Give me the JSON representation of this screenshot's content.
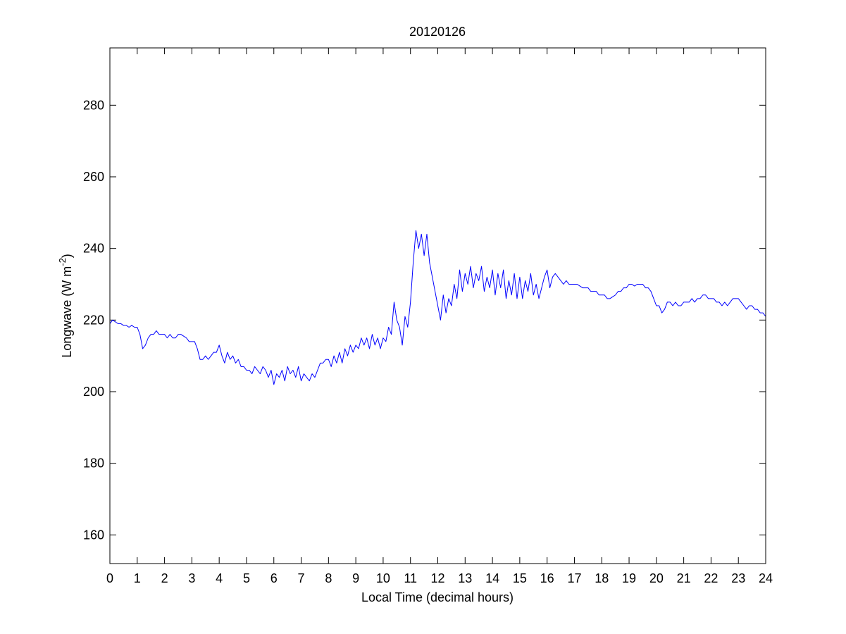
{
  "chart_data": {
    "type": "line",
    "title": "20120126",
    "xlabel": "Local Time (decimal hours)",
    "ylabel": {
      "text": "Longwave (W m",
      "superscript": "-2",
      "suffix": ")"
    },
    "xlim": [
      0,
      24
    ],
    "ylim": [
      152,
      296
    ],
    "xticks": [
      0,
      1,
      2,
      3,
      4,
      5,
      6,
      7,
      8,
      9,
      10,
      11,
      12,
      13,
      14,
      15,
      16,
      17,
      18,
      19,
      20,
      21,
      22,
      23,
      24
    ],
    "yticks": [
      160,
      180,
      200,
      220,
      240,
      260,
      280
    ],
    "grid": false,
    "box": true,
    "x": [
      0,
      0.1,
      0.2,
      0.3,
      0.4,
      0.5,
      0.6,
      0.7,
      0.8,
      0.9,
      1,
      1.1,
      1.2,
      1.3,
      1.4,
      1.5,
      1.6,
      1.7,
      1.8,
      1.9,
      2,
      2.1,
      2.2,
      2.3,
      2.4,
      2.5,
      2.6,
      2.7,
      2.8,
      2.9,
      3,
      3.1,
      3.2,
      3.3,
      3.4,
      3.5,
      3.6,
      3.7,
      3.8,
      3.9,
      4,
      4.1,
      4.2,
      4.3,
      4.4,
      4.5,
      4.6,
      4.7,
      4.8,
      4.9,
      5,
      5.1,
      5.2,
      5.3,
      5.4,
      5.5,
      5.6,
      5.7,
      5.8,
      5.9,
      6,
      6.1,
      6.2,
      6.3,
      6.4,
      6.5,
      6.6,
      6.7,
      6.8,
      6.9,
      7,
      7.1,
      7.2,
      7.3,
      7.4,
      7.5,
      7.6,
      7.7,
      7.8,
      7.9,
      8,
      8.1,
      8.2,
      8.3,
      8.4,
      8.5,
      8.6,
      8.7,
      8.8,
      8.9,
      9,
      9.1,
      9.2,
      9.3,
      9.4,
      9.5,
      9.6,
      9.7,
      9.8,
      9.9,
      10,
      10.1,
      10.2,
      10.3,
      10.4,
      10.5,
      10.6,
      10.7,
      10.8,
      10.9,
      11,
      11.1,
      11.2,
      11.3,
      11.4,
      11.5,
      11.6,
      11.7,
      11.8,
      11.9,
      12,
      12.1,
      12.2,
      12.3,
      12.4,
      12.5,
      12.6,
      12.7,
      12.8,
      12.9,
      13,
      13.1,
      13.2,
      13.3,
      13.4,
      13.5,
      13.6,
      13.7,
      13.8,
      13.9,
      14,
      14.1,
      14.2,
      14.3,
      14.4,
      14.5,
      14.6,
      14.7,
      14.8,
      14.9,
      15,
      15.1,
      15.2,
      15.3,
      15.4,
      15.5,
      15.6,
      15.7,
      15.8,
      15.9,
      16,
      16.1,
      16.2,
      16.3,
      16.4,
      16.5,
      16.6,
      16.7,
      16.8,
      16.9,
      17,
      17.1,
      17.2,
      17.3,
      17.4,
      17.5,
      17.6,
      17.7,
      17.8,
      17.9,
      18,
      18.1,
      18.2,
      18.3,
      18.4,
      18.5,
      18.6,
      18.7,
      18.8,
      18.9,
      19,
      19.1,
      19.2,
      19.3,
      19.4,
      19.5,
      19.6,
      19.7,
      19.8,
      19.9,
      20,
      20.1,
      20.2,
      20.3,
      20.4,
      20.5,
      20.6,
      20.7,
      20.8,
      20.9,
      21,
      21.1,
      21.2,
      21.3,
      21.4,
      21.5,
      21.6,
      21.7,
      21.8,
      21.9,
      22,
      22.1,
      22.2,
      22.3,
      22.4,
      22.5,
      22.6,
      22.7,
      22.8,
      22.9,
      23,
      23.1,
      23.2,
      23.3,
      23.4,
      23.5,
      23.6,
      23.7,
      23.8,
      23.9,
      24
    ],
    "series": [
      {
        "color": "#0000ff",
        "values": [
          219,
          220,
          219.5,
          219,
          219,
          218.5,
          218.5,
          218,
          218.5,
          218,
          218,
          216,
          212,
          213,
          215,
          216,
          216,
          217,
          216,
          216,
          216,
          215,
          216,
          215,
          215,
          216,
          216,
          215.5,
          215,
          214,
          214,
          214,
          212,
          209,
          209,
          210,
          209,
          210,
          211,
          211,
          213,
          210,
          208,
          211,
          209,
          210,
          208,
          209,
          207,
          207,
          206,
          206,
          205,
          207,
          206,
          205,
          207,
          206,
          204,
          206,
          202,
          205,
          204,
          206,
          203,
          207,
          205,
          206,
          204,
          207,
          203,
          205,
          204,
          203,
          205,
          204,
          206,
          208,
          208,
          209,
          209,
          207,
          210,
          208,
          211,
          208,
          212,
          210,
          213,
          211,
          213,
          212,
          215,
          213,
          215,
          212,
          216,
          213,
          215,
          212,
          215,
          214,
          218,
          216,
          225,
          220,
          218,
          213,
          221,
          218,
          225,
          236,
          245,
          240,
          244,
          238,
          244,
          236,
          232,
          228,
          224,
          220,
          227,
          222,
          226,
          224,
          230,
          226,
          234,
          228,
          233,
          230,
          235,
          229,
          233,
          231,
          235,
          228,
          232,
          229,
          234,
          227,
          233,
          229,
          234,
          226,
          231,
          227,
          233,
          226,
          232,
          226,
          231,
          228,
          233,
          227,
          230,
          226,
          229,
          232,
          234,
          229,
          232,
          233,
          232,
          231,
          230,
          231,
          230,
          230,
          230,
          230,
          229.5,
          229,
          229,
          229,
          228,
          228,
          228,
          227,
          227,
          227,
          226,
          226,
          226.5,
          227,
          228,
          228,
          229,
          229,
          230,
          230,
          229.5,
          230,
          230,
          230,
          229,
          229,
          228,
          226,
          224,
          224,
          222,
          223,
          225,
          225,
          224,
          225,
          224,
          224,
          225,
          225,
          225,
          226,
          225,
          226,
          226,
          227,
          227,
          226,
          226,
          226,
          225,
          225,
          224,
          225,
          224,
          225,
          226,
          226,
          226,
          225,
          224,
          223,
          224,
          224,
          223,
          223,
          222,
          222,
          221
        ]
      }
    ]
  }
}
